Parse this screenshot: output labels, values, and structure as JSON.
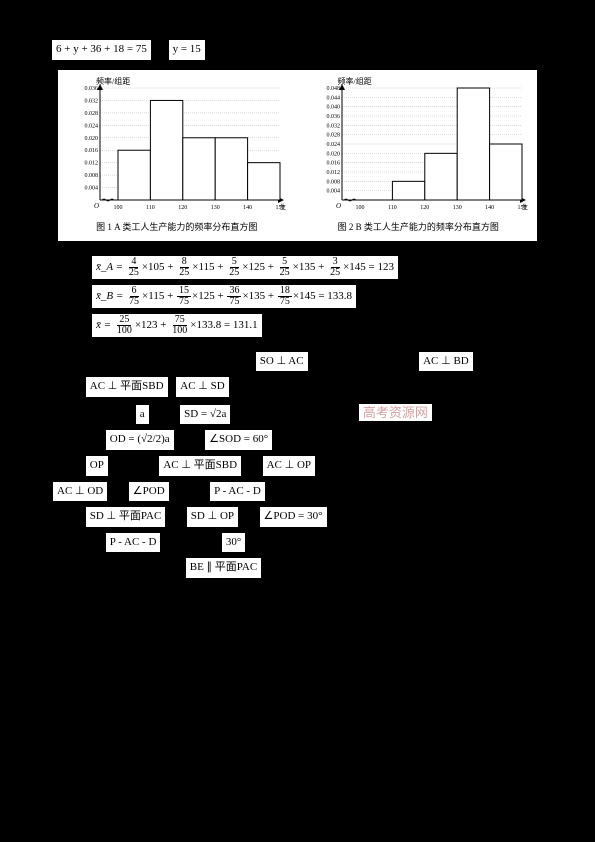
{
  "top_eq": {
    "e1": "6 + y + 36 + 18 = 75",
    "e2": "y = 15"
  },
  "charts": {
    "left": {
      "y_label": "频率/组距",
      "y_ticks": [
        "0.036",
        "0.032",
        "0.028",
        "0.024",
        "0.020",
        "0.016",
        "0.012",
        "0.008",
        "0.004"
      ],
      "y_values": [
        0.036,
        0.032,
        0.028,
        0.024,
        0.02,
        0.016,
        0.012,
        0.008,
        0.004
      ],
      "x_ticks": [
        "100",
        "110",
        "120",
        "130",
        "140",
        "150"
      ],
      "x_label": "生产能力",
      "bars": [
        {
          "x": 100,
          "h": 0.016
        },
        {
          "x": 110,
          "h": 0.032
        },
        {
          "x": 120,
          "h": 0.02
        },
        {
          "x": 130,
          "h": 0.02
        },
        {
          "x": 140,
          "h": 0.012
        }
      ],
      "caption": "图 1  A 类工人生产能力的频率分布直方图",
      "bar_fill": "#ffffff",
      "bar_stroke": "#000000",
      "grid_color": "#888888"
    },
    "right": {
      "y_label": "频率/组距",
      "y_ticks": [
        "0.048",
        "0.044",
        "0.040",
        "0.036",
        "0.032",
        "0.028",
        "0.024",
        "0.020",
        "0.016",
        "0.012",
        "0.008",
        "0.004"
      ],
      "y_values": [
        0.048,
        0.044,
        0.04,
        0.036,
        0.032,
        0.028,
        0.024,
        0.02,
        0.016,
        0.012,
        0.008,
        0.004
      ],
      "x_ticks": [
        "100",
        "110",
        "120",
        "130",
        "140",
        "150"
      ],
      "x_label": "生产能力",
      "bars": [
        {
          "x": 110,
          "h": 0.008
        },
        {
          "x": 120,
          "h": 0.02
        },
        {
          "x": 130,
          "h": 0.048
        },
        {
          "x": 140,
          "h": 0.024
        }
      ],
      "caption": "图 2  B 类工人生产能力的频率分布直方图",
      "bar_fill": "#ffffff",
      "bar_stroke": "#000000",
      "grid_color": "#888888"
    }
  },
  "equations": {
    "row1": {
      "var": "x̄_A =",
      "terms": [
        {
          "n": "4",
          "d": "25",
          "m": "×105 +"
        },
        {
          "n": "8",
          "d": "25",
          "m": "×115 +"
        },
        {
          "n": "5",
          "d": "25",
          "m": "×125 +"
        },
        {
          "n": "5",
          "d": "25",
          "m": "×135 +"
        },
        {
          "n": "3",
          "d": "25",
          "m": "×145 = 123"
        }
      ]
    },
    "row2": {
      "var": "x̄_B =",
      "terms": [
        {
          "n": "6",
          "d": "75",
          "m": "×115 +"
        },
        {
          "n": "15",
          "d": "75",
          "m": "×125 +"
        },
        {
          "n": "36",
          "d": "75",
          "m": "×135 +"
        },
        {
          "n": "18",
          "d": "75",
          "m": "×145 = 133.8"
        }
      ]
    },
    "row3": {
      "var": "x̄ =",
      "terms": [
        {
          "n": "25",
          "d": "100",
          "m": "×123 +"
        },
        {
          "n": "75",
          "d": "100",
          "m": "×133.8 = 131.1"
        }
      ]
    }
  },
  "geom": {
    "b1": "SO ⊥ AC",
    "b2": "AC ⊥ BD",
    "b3": "AC ⊥ 平面SBD",
    "b4": "AC ⊥ SD",
    "b5": "a",
    "b6": "SD = √2a",
    "b7": "OD = (√2/2)a",
    "b8": "∠SOD = 60°",
    "b9": "OP",
    "b10": "AC ⊥ 平面SBD",
    "b11": "AC ⊥ OP",
    "b12": "AC ⊥ OD",
    "b13": "∠POD",
    "b14": "P - AC - D",
    "b15": "SD ⊥ 平面PAC",
    "b16": "SD ⊥ OP",
    "b17": "∠POD = 30°",
    "b18": "P - AC - D",
    "b19": "30°",
    "b20": "BE ∥ 平面PAC"
  },
  "watermark": "高考资源网"
}
